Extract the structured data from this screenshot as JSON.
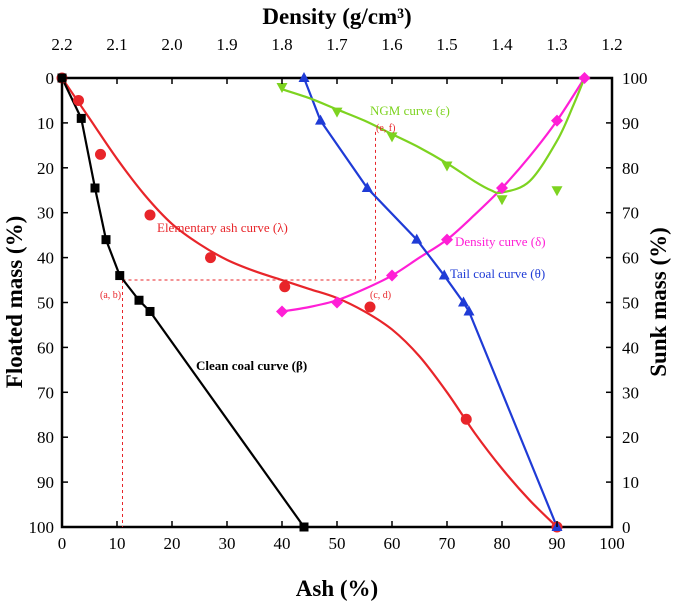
{
  "chart_data": {
    "type": "line",
    "title": "",
    "axes": {
      "x_bottom": {
        "label": "Ash (%)",
        "range": [
          0,
          100
        ],
        "ticks": [
          0,
          10,
          20,
          30,
          40,
          50,
          60,
          70,
          80,
          90,
          100
        ]
      },
      "x_top": {
        "label": "Density (g/cm³)",
        "range": [
          2.2,
          1.2
        ],
        "ticks": [
          2.2,
          2.1,
          2.0,
          1.9,
          1.8,
          1.7,
          1.6,
          1.5,
          1.4,
          1.3,
          1.2
        ],
        "tick_labels": [
          "2.2",
          "2.1",
          "2.0",
          "1.9",
          "1.8",
          "1.7",
          "1.6",
          "1.5",
          "1.4",
          "1.3",
          "1.2"
        ]
      },
      "y_left": {
        "label": "Floated mass (%)",
        "range": [
          0,
          100
        ],
        "inverted": true,
        "ticks": [
          0,
          10,
          20,
          30,
          40,
          50,
          60,
          70,
          80,
          90,
          100
        ]
      },
      "y_right": {
        "label": "Sunk mass (%)",
        "range": [
          100,
          0
        ],
        "ticks": [
          100,
          90,
          80,
          70,
          60,
          50,
          40,
          30,
          20,
          10,
          0
        ]
      }
    },
    "grid": false,
    "series": [
      {
        "name": "Elementary ash curve (λ)",
        "color": "#e8252a",
        "marker": "circle",
        "points": [
          [
            0,
            0
          ],
          [
            3,
            5
          ],
          [
            7,
            17
          ],
          [
            16,
            30.5
          ],
          [
            27,
            40
          ],
          [
            40.5,
            46.5
          ],
          [
            56,
            51
          ],
          [
            73.5,
            76
          ],
          [
            90,
            100
          ]
        ],
        "curve": [
          [
            0,
            0
          ],
          [
            5,
            9
          ],
          [
            10,
            18
          ],
          [
            15,
            26
          ],
          [
            20,
            32.5
          ],
          [
            25,
            37
          ],
          [
            30,
            40.5
          ],
          [
            35,
            43
          ],
          [
            40,
            45
          ],
          [
            45,
            47
          ],
          [
            50,
            49
          ],
          [
            55,
            52
          ],
          [
            60,
            56
          ],
          [
            65,
            62
          ],
          [
            70,
            70
          ],
          [
            75,
            79
          ],
          [
            80,
            87
          ],
          [
            85,
            94
          ],
          [
            90,
            100
          ]
        ]
      },
      {
        "name": "Clean coal curve (β)",
        "color": "#000000",
        "marker": "square",
        "points": [
          [
            0,
            0
          ],
          [
            3.5,
            9
          ],
          [
            6,
            24.5
          ],
          [
            8,
            36
          ],
          [
            10.5,
            44
          ],
          [
            14,
            49.5
          ],
          [
            16,
            52
          ],
          [
            44,
            100
          ]
        ],
        "curve": [
          [
            0,
            0
          ],
          [
            3.5,
            9
          ],
          [
            6,
            24.5
          ],
          [
            8,
            36
          ],
          [
            10.5,
            44
          ],
          [
            14,
            49.5
          ],
          [
            16,
            52
          ],
          [
            44,
            100
          ]
        ]
      },
      {
        "name": "Density curve (δ)",
        "color": "#ff1fd6",
        "marker": "diamond",
        "points": [
          [
            40,
            52
          ],
          [
            50,
            50
          ],
          [
            60,
            44
          ],
          [
            70,
            36
          ],
          [
            80,
            24.5
          ],
          [
            90,
            9.5
          ],
          [
            95,
            0
          ]
        ],
        "curve": [
          [
            40,
            52
          ],
          [
            45,
            51
          ],
          [
            50,
            49.5
          ],
          [
            55,
            47
          ],
          [
            60,
            44
          ],
          [
            65,
            40
          ],
          [
            70,
            36
          ],
          [
            75,
            30.5
          ],
          [
            80,
            24.5
          ],
          [
            85,
            17.5
          ],
          [
            90,
            9.5
          ],
          [
            95,
            0
          ]
        ]
      },
      {
        "name": "Tail coal curve (θ)",
        "color": "#1f3bd6",
        "marker": "triangle-up",
        "points": [
          [
            44,
            0
          ],
          [
            47,
            9.5
          ],
          [
            55.5,
            24.5
          ],
          [
            64.5,
            36
          ],
          [
            69.5,
            44
          ],
          [
            73,
            50
          ],
          [
            74,
            52
          ],
          [
            90,
            100
          ]
        ],
        "curve": [
          [
            44,
            0
          ],
          [
            47,
            9.5
          ],
          [
            55.5,
            24.5
          ],
          [
            64.5,
            36
          ],
          [
            69.5,
            44
          ],
          [
            73,
            50
          ],
          [
            74,
            52
          ],
          [
            90,
            100
          ]
        ]
      },
      {
        "name": "NGM curve (ε)",
        "color": "#7dd320",
        "marker": "triangle-down",
        "points": [
          [
            40,
            2
          ],
          [
            50,
            7.5
          ],
          [
            60,
            13
          ],
          [
            70,
            19.5
          ],
          [
            80,
            27
          ],
          [
            90,
            25
          ]
        ],
        "curve": [
          [
            40,
            2.5
          ],
          [
            45,
            4.5
          ],
          [
            50,
            7
          ],
          [
            55,
            9.5
          ],
          [
            60,
            12.5
          ],
          [
            65,
            15.5
          ],
          [
            70,
            19
          ],
          [
            75,
            23
          ],
          [
            78,
            25
          ],
          [
            80,
            25.5
          ],
          [
            85,
            23
          ],
          [
            90,
            14
          ],
          [
            93,
            6
          ],
          [
            95,
            0
          ]
        ]
      }
    ],
    "annotations": [
      {
        "text": "(a, b)",
        "x": 11,
        "y": 45
      },
      {
        "text": "(c, d)",
        "x": 57,
        "y": 45
      },
      {
        "text": "(e, f)",
        "x": 57,
        "y": 12
      }
    ],
    "guide_lines": {
      "color": "#e8252a",
      "style": "dashed",
      "vertical_ash_x": [
        11,
        57
      ],
      "horizontal_y": [
        45
      ]
    },
    "series_labels": [
      {
        "series": "Elementary ash curve (λ)",
        "text": "Elementary ash curve (λ)",
        "color": "#e8252a"
      },
      {
        "series": "Clean coal curve (β)",
        "text": "Clean coal curve (β)",
        "color": "#000000"
      },
      {
        "series": "Density curve (δ)",
        "text": "Density curve (δ)",
        "color": "#ff1fd6"
      },
      {
        "series": "Tail coal curve (θ)",
        "text": "Tail coal curve (θ)",
        "color": "#1f3bd6"
      },
      {
        "series": "NGM curve (ε)",
        "text": "NGM curve (ε)",
        "color": "#7dd320"
      }
    ]
  }
}
